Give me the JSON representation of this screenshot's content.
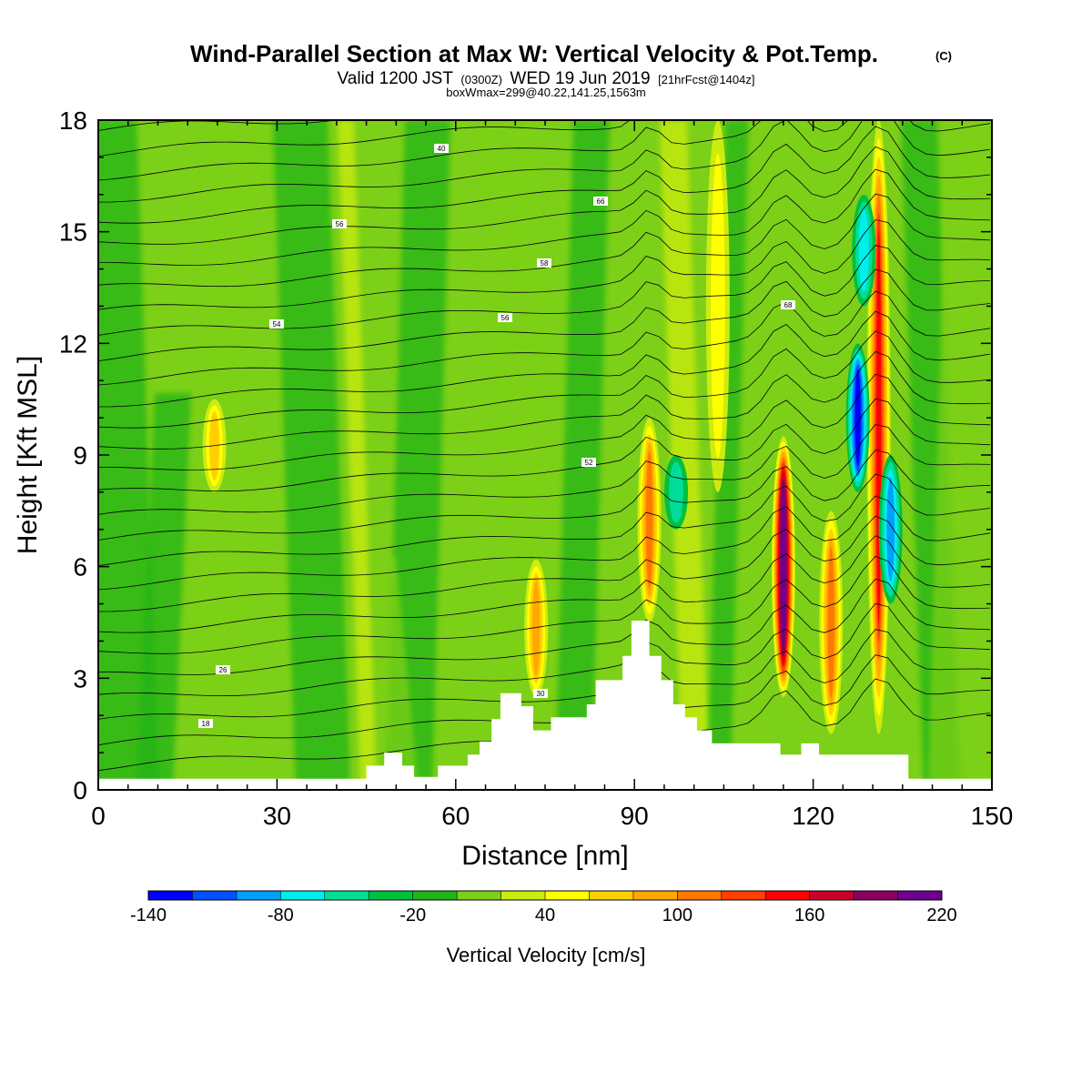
{
  "title": {
    "main": "Wind-Parallel Section at Max W: Vertical Velocity & Pot.Temp.",
    "copyright": "(C)",
    "valid_prefix": "Valid 1200 JST",
    "valid_utc": "(0300Z)",
    "valid_date": "WED 19 Jun 2019",
    "forecast": "[21hrFcst@1404z]",
    "box": "boxWmax=299@40.22,141.25,1563m"
  },
  "chart_data": {
    "type": "heatmap",
    "xlabel": "Distance [nm]",
    "ylabel": "Height [Kft MSL]",
    "xlim": [
      0,
      150
    ],
    "ylim": [
      0,
      18
    ],
    "x_ticks": [
      "0",
      "30",
      "60",
      "90",
      "120",
      "150"
    ],
    "y_ticks": [
      "0",
      "3",
      "6",
      "9",
      "12",
      "15",
      "18"
    ],
    "field": "Vertical Velocity [cm/s]",
    "background_value_cm_s": 0,
    "features": [
      {
        "kind": "updraft",
        "x_nm": 115,
        "y_range_kft": [
          2.5,
          9.5
        ],
        "peak_cm_s": 220
      },
      {
        "kind": "updraft",
        "x_nm": 131,
        "y_range_kft": [
          1.5,
          18
        ],
        "peak_cm_s": 140
      },
      {
        "kind": "updraft",
        "x_nm": 123,
        "y_range_kft": [
          1.5,
          7.5
        ],
        "peak_cm_s": 100
      },
      {
        "kind": "updraft",
        "x_nm": 92.5,
        "y_range_kft": [
          4.5,
          10
        ],
        "peak_cm_s": 100
      },
      {
        "kind": "updraft",
        "x_nm": 73.5,
        "y_range_kft": [
          2.5,
          6.2
        ],
        "peak_cm_s": 90
      },
      {
        "kind": "updraft",
        "x_nm": 19.5,
        "y_range_kft": [
          8,
          10.5
        ],
        "peak_cm_s": 60
      },
      {
        "kind": "updraft",
        "x_nm": 104,
        "y_range_kft": [
          8,
          18
        ],
        "peak_cm_s": 40
      },
      {
        "kind": "downdraft",
        "x_nm": 127.5,
        "y_range_kft": [
          8,
          12
        ],
        "peak_cm_s": -130
      },
      {
        "kind": "downdraft",
        "x_nm": 133,
        "y_range_kft": [
          5,
          9
        ],
        "peak_cm_s": -80
      },
      {
        "kind": "downdraft",
        "x_nm": 128.5,
        "y_range_kft": [
          13,
          16
        ],
        "peak_cm_s": -70
      },
      {
        "kind": "downdraft",
        "x_nm": 97,
        "y_range_kft": [
          7,
          9
        ],
        "peak_cm_s": -40
      }
    ],
    "terrain_kft": [
      [
        0,
        0.3
      ],
      [
        45,
        0.3
      ],
      [
        45,
        0.65
      ],
      [
        48,
        0.65
      ],
      [
        48,
        1.0
      ],
      [
        51,
        1.0
      ],
      [
        51,
        0.65
      ],
      [
        53,
        0.65
      ],
      [
        53,
        0.35
      ],
      [
        57,
        0.35
      ],
      [
        57,
        0.65
      ],
      [
        62,
        0.65
      ],
      [
        62,
        0.95
      ],
      [
        64,
        0.95
      ],
      [
        64,
        1.3
      ],
      [
        66,
        1.3
      ],
      [
        66,
        1.9
      ],
      [
        67.5,
        1.9
      ],
      [
        67.5,
        2.6
      ],
      [
        71,
        2.6
      ],
      [
        71,
        2.25
      ],
      [
        73,
        2.25
      ],
      [
        73,
        1.6
      ],
      [
        76,
        1.6
      ],
      [
        76,
        1.95
      ],
      [
        82,
        1.95
      ],
      [
        82,
        2.3
      ],
      [
        83.5,
        2.3
      ],
      [
        83.5,
        2.95
      ],
      [
        88,
        2.95
      ],
      [
        88,
        3.6
      ],
      [
        89.5,
        3.6
      ],
      [
        89.5,
        4.55
      ],
      [
        92.5,
        4.55
      ],
      [
        92.5,
        3.6
      ],
      [
        94.5,
        3.6
      ],
      [
        94.5,
        2.95
      ],
      [
        96.5,
        2.95
      ],
      [
        96.5,
        2.3
      ],
      [
        98.5,
        2.3
      ],
      [
        98.5,
        1.95
      ],
      [
        100.5,
        1.95
      ],
      [
        100.5,
        1.6
      ],
      [
        103,
        1.6
      ],
      [
        103,
        1.25
      ],
      [
        114.5,
        1.25
      ],
      [
        114.5,
        0.95
      ],
      [
        118,
        0.95
      ],
      [
        118,
        1.25
      ],
      [
        121,
        1.25
      ],
      [
        121,
        0.95
      ],
      [
        136,
        0.95
      ],
      [
        136,
        0.3
      ],
      [
        150,
        0.3
      ]
    ],
    "theta_contour_labels": [
      "40",
      "56",
      "58",
      "54",
      "56",
      "66",
      "68",
      "52",
      "26",
      "18",
      "30"
    ]
  },
  "colorbar": {
    "title": "Vertical Velocity [cm/s]",
    "min": -140,
    "max": 220,
    "step": 20,
    "labels": [
      "-140",
      "-80",
      "-20",
      "40",
      "100",
      "160",
      "220"
    ],
    "colors": [
      "#0000ff",
      "#0050ff",
      "#00a0ff",
      "#00eeee",
      "#00dd99",
      "#00c040",
      "#22b418",
      "#7cd018",
      "#ccec10",
      "#ffff00",
      "#ffd000",
      "#ffa800",
      "#ff7800",
      "#ff4000",
      "#ff0000",
      "#c8002c",
      "#8c0060",
      "#6c0090"
    ]
  },
  "theme": {
    "background": "#ffffff",
    "contour_color": "#000000",
    "terrain_fill": "#ffffff"
  }
}
